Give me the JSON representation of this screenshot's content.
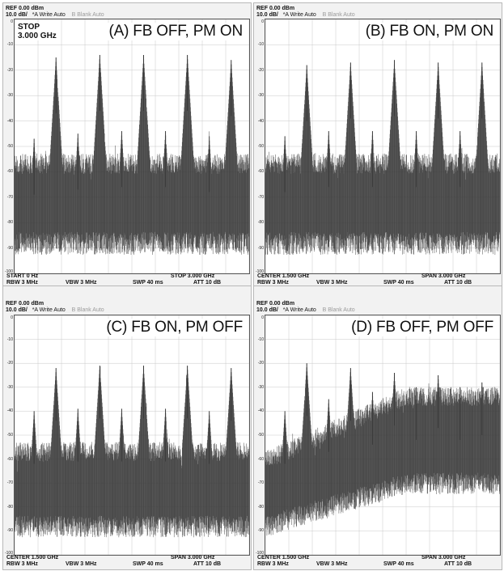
{
  "panels": [
    {
      "id": "A",
      "title": "(A) FB OFF, PM ON",
      "hdr_ref": "REF  0.00 dBm",
      "hdr_scale": "10.0 dB/",
      "hdr_trace_a": "*A Write Auto",
      "hdr_trace_b": "B Blank Auto",
      "annotation_line1": "STOP",
      "annotation_line2": "3.000 GHz",
      "footer_left": "START  0 Hz",
      "footer_right": "STOP 3.000 GHz",
      "rbw": "RBW 3 MHz",
      "vbw": "VBW  3 MHz",
      "swp": "SWP  40 ms",
      "att": "ATT  10 dB"
    },
    {
      "id": "B",
      "title": "(B) FB ON, PM ON",
      "hdr_ref": "REF  0.00 dBm",
      "hdr_scale": "10.0 dB/",
      "hdr_trace_a": "*A Write Auto",
      "hdr_trace_b": "B Blank Auto",
      "annotation_line1": "",
      "annotation_line2": "",
      "footer_left": "CENTER 1.500 GHz",
      "footer_right": "SPAN  3.000 GHz",
      "rbw": "RBW 3 MHz",
      "vbw": "VBW  3 MHz",
      "swp": "SWP  40 ms",
      "att": "ATT  10 dB"
    },
    {
      "id": "C",
      "title": "(C) FB ON, PM OFF",
      "hdr_ref": "REF  0.00 dBm",
      "hdr_scale": "10.0 dB/",
      "hdr_trace_a": "*A Write Auto",
      "hdr_trace_b": "B Blank Auto",
      "annotation_line1": "",
      "annotation_line2": "",
      "footer_left": "CENTER 1.500 GHz",
      "footer_right": "SPAN  3.000 GHz",
      "rbw": "RBW 3 MHz",
      "vbw": "VBW  3 MHz",
      "swp": "SWP  40 ms",
      "att": "ATT  10 dB"
    },
    {
      "id": "D",
      "title": "(D) FB OFF, PM OFF",
      "hdr_ref": "REF  0.00 dBm",
      "hdr_scale": "10.0 dB/",
      "hdr_trace_a": "*A Write Auto",
      "hdr_trace_b": "B Blank Auto",
      "annotation_line1": "",
      "annotation_line2": "",
      "footer_left": "CENTER 1.500 GHz",
      "footer_right": "SPAN  3.000 GHz",
      "rbw": "RBW 3 MHz",
      "vbw": "VBW  3 MHz",
      "swp": "SWP  40 ms",
      "att": "ATT  10 dB"
    }
  ],
  "colors": {
    "trace": "#3a3a3a",
    "trace_grey": "#8a8a8a",
    "grid": "#c8c8c8",
    "panel_bg": "#f2f2f2"
  },
  "chart_data": [
    {
      "type": "line",
      "title": "(A) FB OFF, PM ON",
      "x_unit": "GHz",
      "xlim": [
        0,
        3.0
      ],
      "ylim": [
        -100,
        0
      ],
      "y_ticks": [
        0,
        -10,
        -20,
        -30,
        -40,
        -50,
        -60,
        -70,
        -80,
        -90,
        -100
      ],
      "grid": true,
      "series": [
        {
          "peaks_x": [
            0.25,
            0.53,
            0.81,
            1.09,
            1.37,
            1.65,
            1.93,
            2.21,
            2.49,
            2.77
          ],
          "peaks_y": [
            -47,
            -15,
            -45,
            -14,
            -44,
            -14,
            -44,
            -14,
            -46,
            -16
          ],
          "noise_top": -58,
          "noise_bottom": -90
        }
      ]
    },
    {
      "type": "line",
      "title": "(B) FB ON, PM ON",
      "x_unit": "GHz",
      "xlim": [
        0,
        3.0
      ],
      "ylim": [
        -100,
        0
      ],
      "y_ticks": [
        0,
        -10,
        -20,
        -30,
        -40,
        -50,
        -60,
        -70,
        -80,
        -90,
        -100
      ],
      "grid": true,
      "series": [
        {
          "peaks_x": [
            0.25,
            0.53,
            0.81,
            1.09,
            1.37,
            1.65,
            1.93,
            2.21,
            2.49,
            2.77
          ],
          "peaks_y": [
            -46,
            -18,
            -44,
            -17,
            -44,
            -16,
            -44,
            -17,
            -44,
            -17
          ],
          "noise_top": -58,
          "noise_bottom": -90
        }
      ]
    },
    {
      "type": "line",
      "title": "(C) FB ON, PM OFF",
      "x_unit": "GHz",
      "xlim": [
        0,
        3.0
      ],
      "ylim": [
        -100,
        0
      ],
      "y_ticks": [
        0,
        -10,
        -20,
        -30,
        -40,
        -50,
        -60,
        -70,
        -80,
        -90,
        -100
      ],
      "grid": true,
      "series": [
        {
          "peaks_x": [
            0.25,
            0.53,
            0.81,
            1.09,
            1.37,
            1.65,
            1.93,
            2.21,
            2.49,
            2.77
          ],
          "peaks_y": [
            -40,
            -22,
            -39,
            -21,
            -39,
            -21,
            -39,
            -21,
            -40,
            -22
          ],
          "noise_top": -58,
          "noise_bottom": -90
        }
      ]
    },
    {
      "type": "line",
      "title": "(D) FB OFF, PM OFF",
      "x_unit": "GHz",
      "xlim": [
        0,
        3.0
      ],
      "ylim": [
        -100,
        0
      ],
      "y_ticks": [
        0,
        -10,
        -20,
        -30,
        -40,
        -50,
        -60,
        -70,
        -80,
        -90,
        -100
      ],
      "grid": true,
      "series": [
        {
          "peaks_x": [
            0.25,
            0.53,
            0.81,
            1.09,
            1.37,
            1.65,
            1.93,
            2.21,
            2.49,
            2.77
          ],
          "peaks_y": [
            -40,
            -20,
            -35,
            -22,
            -32,
            -24,
            -30,
            -25,
            -30,
            -28
          ],
          "noise_top_start": -62,
          "noise_top_end": -35,
          "noise_bottom_start": -90,
          "noise_bottom_end": -72
        }
      ]
    }
  ]
}
